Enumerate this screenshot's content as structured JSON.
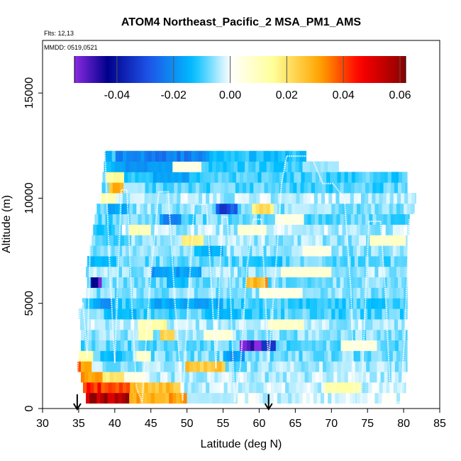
{
  "chart_data": {
    "type": "heatmap",
    "title": "ATOM4 Northeast_Pacific_2 MSA_PM1_AMS",
    "flights_label": "Flts: 12,13",
    "date_label": "MMDD: 0519,0521",
    "xlabel": "Latitude (deg N)",
    "ylabel": "Altitude (m)",
    "xlim": [
      30,
      85
    ],
    "ylim": [
      0,
      17500
    ],
    "x_ticks": [
      "30",
      "35",
      "40",
      "45",
      "50",
      "55",
      "60",
      "65",
      "70",
      "75",
      "80",
      "85"
    ],
    "y_ticks": [
      "0",
      "5000",
      "10000",
      "15000"
    ],
    "colorbar": {
      "min": -0.055,
      "max": 0.062,
      "ticks": [
        "-0.04",
        "-0.02",
        "0.00",
        "0.02",
        "0.04",
        "0.06"
      ],
      "colors": [
        "#8a2be2",
        "#00008b",
        "#1e50e6",
        "#00bfff",
        "#ffffff",
        "#ffff99",
        "#ffa500",
        "#ff0000",
        "#8b0000"
      ]
    },
    "altitude_bins_m": [
      500,
      1000,
      1500,
      2000,
      2500,
      3000,
      3500,
      4000,
      4500,
      5000,
      5500,
      6000,
      6500,
      7000,
      7500,
      8000,
      8500,
      9000,
      9500,
      10000,
      10500,
      11000,
      11500,
      12000
    ],
    "bands": [
      {
        "alt": 500,
        "from": 36,
        "to": 80.0,
        "base": -0.002,
        "events": [
          [
            36,
            42,
            0.06
          ],
          [
            42,
            50,
            0.03
          ],
          [
            50,
            57,
            -0.004
          ]
        ]
      },
      {
        "alt": 1000,
        "from": 35.6,
        "to": 80.3,
        "base": -0.003,
        "events": [
          [
            35.6,
            42,
            0.042
          ],
          [
            42,
            49,
            0.026
          ],
          [
            69,
            74,
            0.012
          ]
        ]
      },
      {
        "alt": 1500,
        "from": 35.3,
        "to": 80.3,
        "base": -0.004,
        "events": [
          [
            35.3,
            38,
            0.03
          ],
          [
            38,
            41,
            0.02
          ],
          [
            41,
            44,
            0.004
          ]
        ]
      },
      {
        "alt": 2000,
        "from": 34.8,
        "to": 80.5,
        "base": -0.005,
        "events": [
          [
            34.8,
            36.5,
            0.034
          ],
          [
            49.5,
            55,
            0.025
          ],
          [
            56,
            58,
            -0.01
          ]
        ]
      },
      {
        "alt": 2500,
        "from": 35,
        "to": 80.5,
        "base": -0.007,
        "events": [
          [
            35,
            37,
            0.012
          ],
          [
            38,
            41,
            -0.013
          ],
          [
            43,
            45,
            0.008
          ],
          [
            55,
            58,
            -0.018
          ]
        ]
      },
      {
        "alt": 3000,
        "from": 35.3,
        "to": 80.5,
        "base": -0.008,
        "events": [
          [
            57,
            60,
            -0.055
          ],
          [
            60,
            62,
            -0.03
          ],
          [
            71,
            76,
            0.005
          ]
        ]
      },
      {
        "alt": 3500,
        "from": 35.3,
        "to": 80.5,
        "base": -0.006,
        "events": [
          [
            43,
            45,
            0.014
          ],
          [
            46,
            48,
            0.022
          ],
          [
            52,
            56,
            0.006
          ]
        ]
      },
      {
        "alt": 4000,
        "from": 35.2,
        "to": 80.5,
        "base": -0.004,
        "events": [
          [
            43,
            46,
            0.01
          ],
          [
            45,
            47,
            0.014
          ],
          [
            61,
            66,
            0.008
          ]
        ]
      },
      {
        "alt": 4500,
        "from": 35,
        "to": 80.5,
        "base": -0.009,
        "events": [
          [
            35,
            38,
            -0.005
          ],
          [
            39,
            43,
            -0.014
          ],
          [
            53,
            57,
            -0.013
          ]
        ]
      },
      {
        "alt": 5000,
        "from": 35.5,
        "to": 80.5,
        "base": -0.01,
        "events": [
          [
            37,
            40,
            -0.018
          ],
          [
            45,
            55,
            -0.016
          ]
        ]
      },
      {
        "alt": 5500,
        "from": 36,
        "to": 80.5,
        "base": -0.006,
        "events": [
          [
            60,
            66,
            0.004
          ]
        ]
      },
      {
        "alt": 6000,
        "from": 36.2,
        "to": 80.5,
        "base": -0.007,
        "events": [
          [
            36.5,
            38,
            -0.048
          ],
          [
            47,
            50,
            -0.014
          ],
          [
            58,
            61,
            0.03
          ]
        ]
      },
      {
        "alt": 6500,
        "from": 36,
        "to": 80.5,
        "base": -0.005,
        "events": [
          [
            45,
            52,
            -0.018
          ],
          [
            63,
            70,
            0.006
          ]
        ]
      },
      {
        "alt": 7000,
        "from": 36.2,
        "to": 80.5,
        "base": -0.008,
        "events": [
          [
            36.2,
            40,
            -0.014
          ],
          [
            58,
            63,
            -0.012
          ]
        ]
      },
      {
        "alt": 7500,
        "from": 36.5,
        "to": 80.5,
        "base": -0.006,
        "events": [
          [
            51,
            55,
            -0.015
          ],
          [
            66,
            70,
            0.004
          ]
        ]
      },
      {
        "alt": 8000,
        "from": 36.8,
        "to": 80.5,
        "base": -0.005,
        "events": [
          [
            49,
            52,
            0.018
          ],
          [
            38,
            42,
            -0.01
          ],
          [
            75,
            80,
            0.008
          ]
        ]
      },
      {
        "alt": 8500,
        "from": 37,
        "to": 80.8,
        "base": -0.004,
        "events": [
          [
            37,
            40,
            -0.012
          ],
          [
            42,
            45,
            0.01
          ],
          [
            57,
            61,
            0.006
          ]
        ]
      },
      {
        "alt": 9000,
        "from": 37.2,
        "to": 80.8,
        "base": -0.008,
        "events": [
          [
            46,
            49,
            -0.02
          ],
          [
            62,
            66,
            0.004
          ]
        ]
      },
      {
        "alt": 9500,
        "from": 37.5,
        "to": 81.5,
        "base": -0.006,
        "events": [
          [
            39,
            42,
            -0.016
          ],
          [
            54,
            57,
            -0.03
          ],
          [
            59,
            62,
            0.02
          ]
        ]
      },
      {
        "alt": 10000,
        "from": 37.6,
        "to": 81.7,
        "base": -0.004,
        "events": [
          [
            37.8,
            40,
            0.012
          ],
          [
            44,
            47,
            -0.005
          ]
        ]
      },
      {
        "alt": 10500,
        "from": 38.2,
        "to": 80.5,
        "base": -0.009,
        "events": [
          [
            39,
            41,
            0.028
          ],
          [
            41,
            44,
            -0.004
          ]
        ]
      },
      {
        "alt": 11000,
        "from": 38.3,
        "to": 80.5,
        "base": -0.01,
        "events": [
          [
            38.5,
            41,
            0.014
          ],
          [
            45,
            50,
            -0.016
          ]
        ]
      },
      {
        "alt": 11500,
        "from": 38.5,
        "to": 71.0,
        "base": -0.011,
        "events": [
          [
            40,
            48,
            -0.018
          ],
          [
            48,
            52,
            0.004
          ],
          [
            66,
            71,
            -0.005
          ]
        ]
      },
      {
        "alt": 12000,
        "from": 38.6,
        "to": 66.5,
        "base": -0.013,
        "events": [
          [
            40,
            53,
            -0.022
          ],
          [
            53,
            58,
            -0.012
          ]
        ]
      }
    ],
    "flight_track": [
      [
        34.8,
        1300
      ],
      [
        35.2,
        4900
      ],
      [
        35.6,
        5000
      ],
      [
        36.2,
        2400
      ],
      [
        36.6,
        8000
      ],
      [
        37.3,
        9600
      ],
      [
        37.8,
        12100
      ],
      [
        38.6,
        12400
      ],
      [
        39.4,
        6000
      ],
      [
        40.0,
        2200
      ],
      [
        40.9,
        10400
      ],
      [
        41.7,
        10400
      ],
      [
        42.4,
        4600
      ],
      [
        43.0,
        1000
      ],
      [
        43.8,
        300
      ],
      [
        44.8,
        5600
      ],
      [
        46.1,
        10300
      ],
      [
        47.4,
        10300
      ],
      [
        48.3,
        5200
      ],
      [
        49.4,
        400
      ],
      [
        50.1,
        4700
      ],
      [
        51.0,
        9700
      ],
      [
        52.7,
        9700
      ],
      [
        53.4,
        5800
      ],
      [
        54.0,
        1900
      ],
      [
        54.9,
        9100
      ],
      [
        55.6,
        9100
      ],
      [
        56.6,
        300
      ],
      [
        57.4,
        2000
      ],
      [
        58.3,
        6700
      ],
      [
        59.2,
        9000
      ],
      [
        60.3,
        9000
      ],
      [
        61.3,
        2200
      ],
      [
        62.4,
        7200
      ],
      [
        63.1,
        10700
      ],
      [
        63.8,
        12000
      ],
      [
        67.2,
        12000
      ],
      [
        68.8,
        10700
      ],
      [
        70.2,
        10700
      ],
      [
        71.8,
        10000
      ],
      [
        72.7,
        5600
      ],
      [
        73.2,
        200
      ],
      [
        74.1,
        200
      ],
      [
        75.2,
        8900
      ],
      [
        76.8,
        8900
      ],
      [
        77.6,
        4800
      ],
      [
        78.2,
        300
      ],
      [
        79.6,
        300
      ],
      [
        80.2,
        3900
      ],
      [
        80.8,
        9000
      ],
      [
        81.8,
        9400
      ]
    ],
    "markers_lat": [
      34.8,
      61.3
    ]
  }
}
